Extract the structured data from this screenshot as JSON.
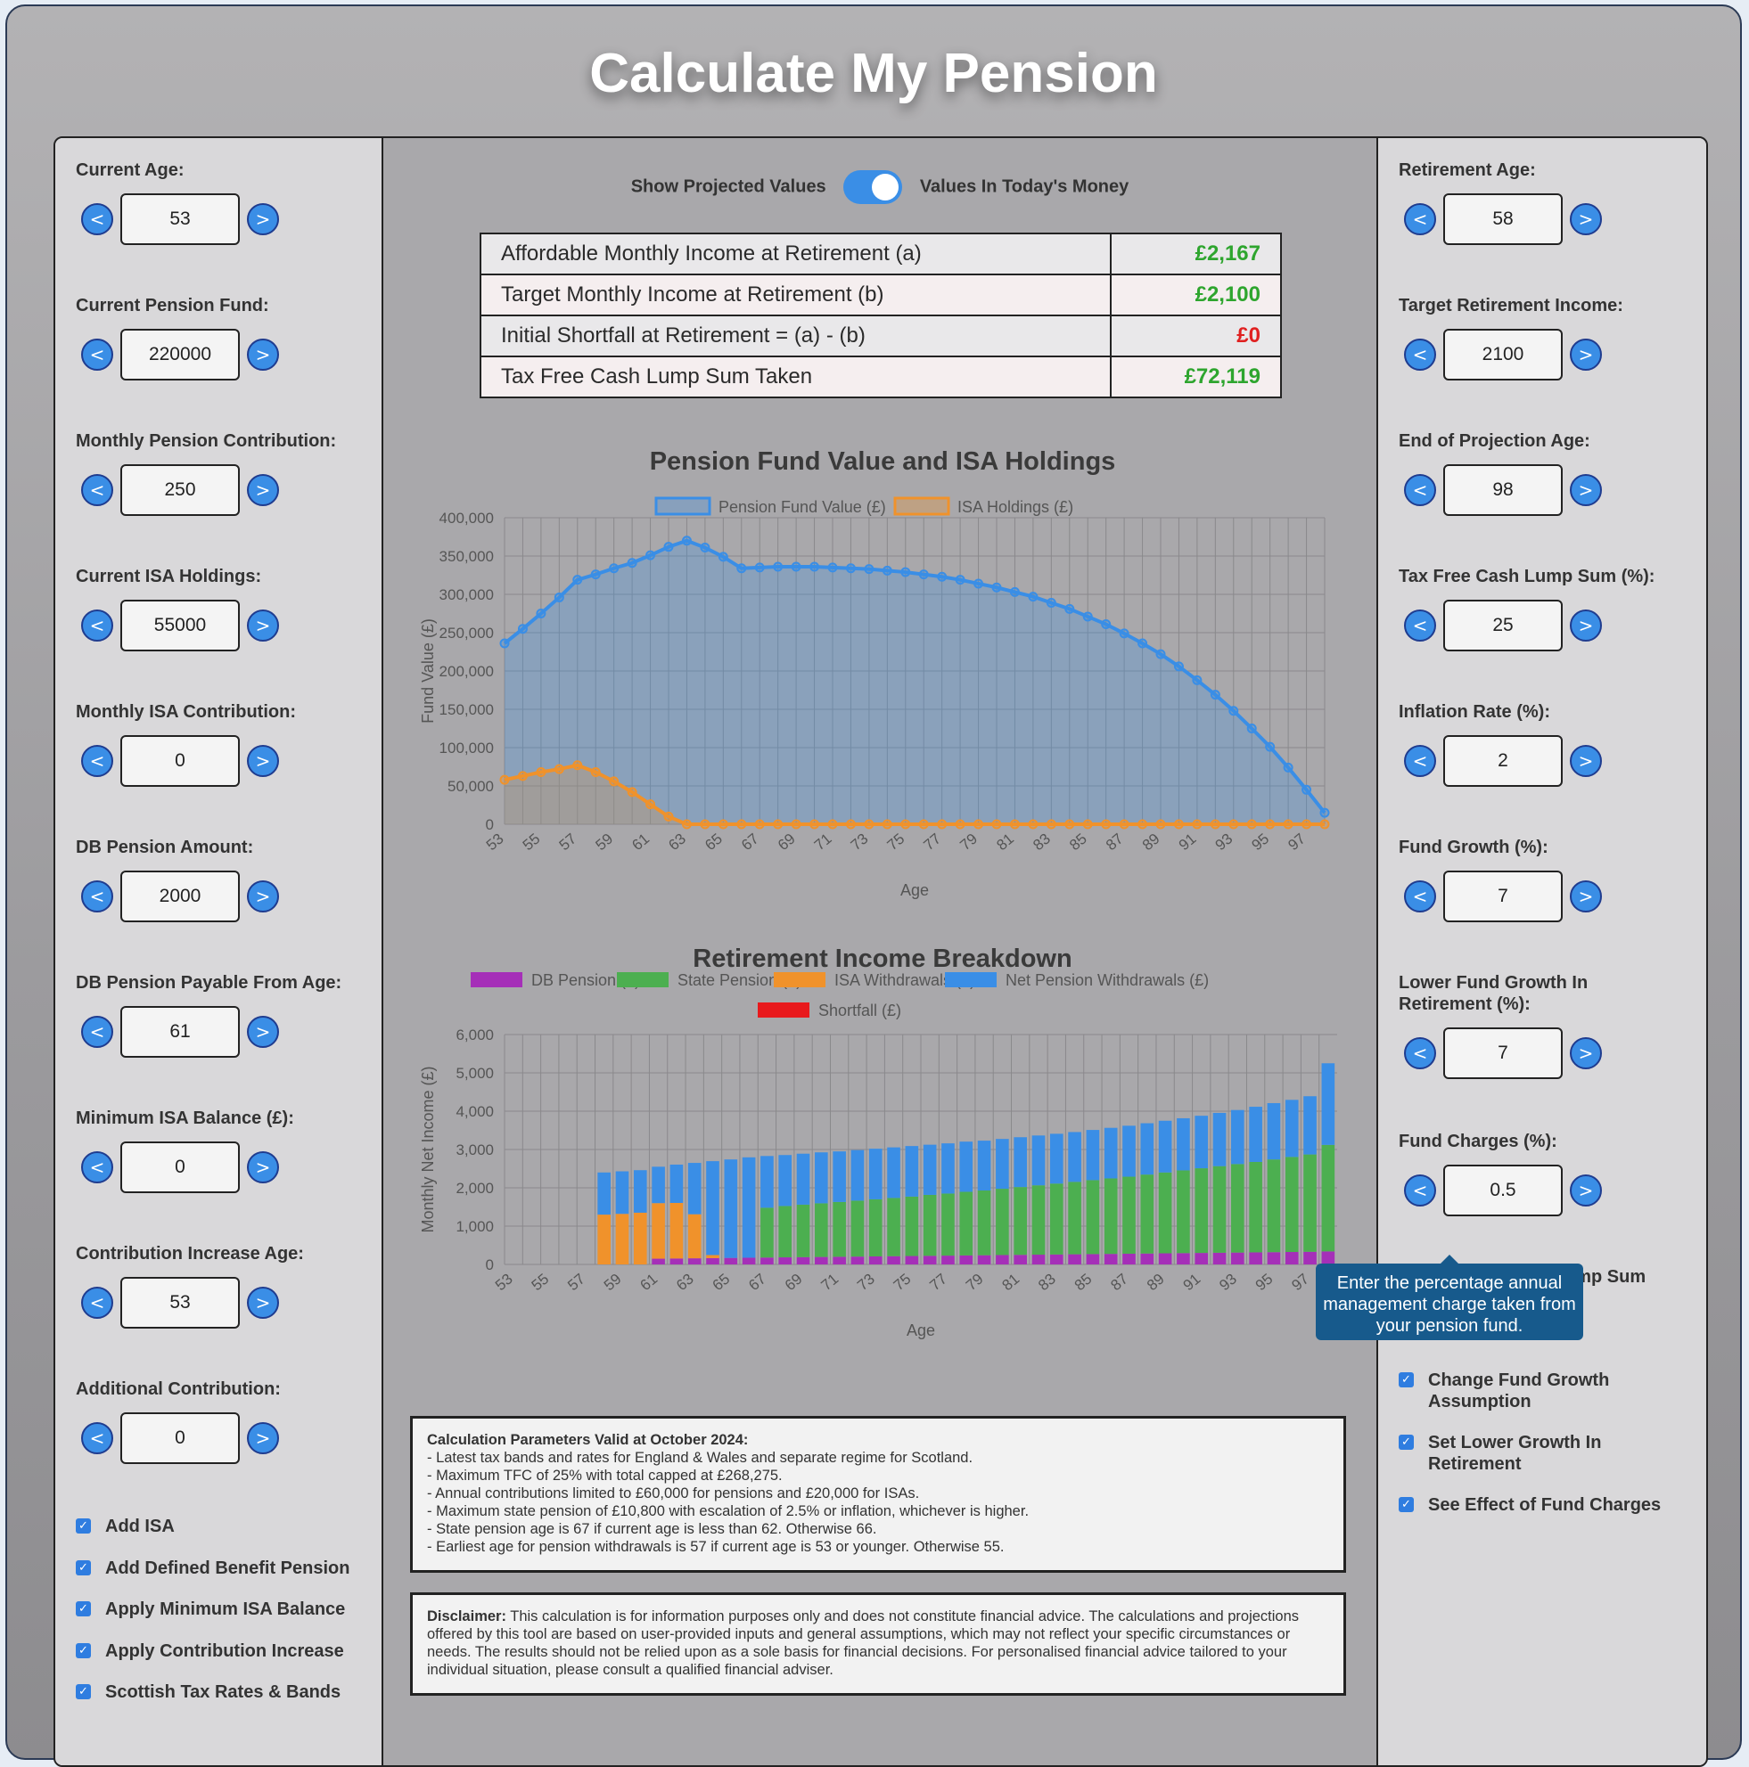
{
  "page": {
    "title": "Calculate My Pension"
  },
  "left_fields": [
    {
      "label": "Current Age:",
      "value": "53"
    },
    {
      "label": "Current Pension Fund:",
      "value": "220000"
    },
    {
      "label": "Monthly Pension Contribution:",
      "value": "250"
    },
    {
      "label": "Current ISA Holdings:",
      "value": "55000"
    },
    {
      "label": "Monthly ISA Contribution:",
      "value": "0"
    },
    {
      "label": "DB Pension Amount:",
      "value": "2000"
    },
    {
      "label": "DB Pension Payable From Age:",
      "value": "61"
    },
    {
      "label": "Minimum ISA Balance (£):",
      "value": "0"
    },
    {
      "label": "Contribution Increase Age:",
      "value": "53"
    },
    {
      "label": "Additional Contribution:",
      "value": "0"
    }
  ],
  "left_checks": [
    {
      "label": "Add ISA",
      "checked": true
    },
    {
      "label": "Add Defined Benefit Pension",
      "checked": true
    },
    {
      "label": "Apply Minimum ISA Balance",
      "checked": true
    },
    {
      "label": "Apply Contribution Increase",
      "checked": true
    },
    {
      "label": "Scottish Tax Rates & Bands",
      "checked": true
    }
  ],
  "right_fields": [
    {
      "label": "Retirement Age:",
      "value": "58"
    },
    {
      "label": "Target Retirement Income:",
      "value": "2100"
    },
    {
      "label": "End of Projection Age:",
      "value": "98"
    },
    {
      "label": "Tax Free Cash Lump Sum (%):",
      "value": "25"
    },
    {
      "label": "Inflation Rate (%):",
      "value": "2"
    },
    {
      "label": "Fund Growth (%):",
      "value": "7"
    },
    {
      "label": "Lower Fund Growth In Retirement (%):",
      "value": "7"
    },
    {
      "label": "Fund Charges (%):",
      "value": "0.5"
    }
  ],
  "right_checks": [
    {
      "label": "Tax Free Cash Lump Sum",
      "checked": true
    },
    {
      "label": "Change Fund Growth Assumption",
      "checked": true
    },
    {
      "label": "Set Lower Growth In Retirement",
      "checked": true
    },
    {
      "label": "See Effect of Fund Charges",
      "checked": true
    }
  ],
  "stepper": {
    "dec": "<",
    "inc": ">"
  },
  "toggle": {
    "left_label": "Show Projected Values",
    "right_label": "Values In Today's Money",
    "on": true
  },
  "results": [
    {
      "label": "Affordable Monthly Income at Retirement (a)",
      "value": "£2,167",
      "color": "#2ea52e"
    },
    {
      "label": "Target Monthly Income at Retirement (b)",
      "value": "£2,100",
      "color": "#2ea52e"
    },
    {
      "label": "Initial Shortfall at Retirement = (a) - (b)",
      "value": "£0",
      "color": "#e02020"
    },
    {
      "label": "Tax Free Cash Lump Sum Taken",
      "value": "£72,119",
      "color": "#2ea52e"
    }
  ],
  "tooltip": {
    "text": "Enter the percentage annual management charge taken from your pension fund."
  },
  "notes": {
    "params_heading": "Calculation Parameters Valid at October 2024:",
    "params": [
      "- Latest tax bands and rates for England & Wales and separate regime for Scotland.",
      "- Maximum TFC of 25% with total capped at £268,275.",
      "- Annual contributions limited to £60,000 for pensions and £20,000 for ISAs.",
      "- Maximum state pension of £10,800 with escalation of 2.5% or inflation, whichever is higher.",
      "- State pension age is 67 if current age is less than 62. Otherwise 66.",
      "- Earliest age for pension withdrawals is 57 if current age is 53 or younger. Otherwise 55."
    ],
    "disclaimer_heading": "Disclaimer:",
    "disclaimer": " This calculation is for information purposes only and does not constitute financial advice. The calculations and projections offered by this tool are based on user-provided inputs and general assumptions, which may not reflect your specific circumstances or needs. The results should not be relied upon as a sole basis for financial decisions. For personalised financial advice tailored to your individual situation, please consult a qualified financial adviser."
  },
  "colors": {
    "pension_line": "#3a8ee6",
    "isa_line": "#f0922b",
    "db": "#a52fb8",
    "state": "#4caf50",
    "isa": "#f0922b",
    "net": "#3a8ee6",
    "shortfall": "#e8191c"
  },
  "chart_data": [
    {
      "type": "area",
      "title": "Pension Fund Value and ISA Holdings",
      "xlabel": "Age",
      "ylabel": "Fund Value (£)",
      "ylim": [
        0,
        400000
      ],
      "yticks": [
        0,
        50000,
        100000,
        150000,
        200000,
        250000,
        300000,
        350000,
        400000
      ],
      "ytick_labels": [
        "0",
        "50,000",
        "100,000",
        "150,000",
        "200,000",
        "250,000",
        "300,000",
        "350,000",
        "400,000"
      ],
      "x": [
        53,
        54,
        55,
        56,
        57,
        58,
        59,
        60,
        61,
        62,
        63,
        64,
        65,
        66,
        67,
        68,
        69,
        70,
        71,
        72,
        73,
        74,
        75,
        76,
        77,
        78,
        79,
        80,
        81,
        82,
        83,
        84,
        85,
        86,
        87,
        88,
        89,
        90,
        91,
        92,
        93,
        94,
        95,
        96,
        97,
        98
      ],
      "xtick_labels": [
        "53",
        "55",
        "57",
        "59",
        "61",
        "63",
        "65",
        "67",
        "69",
        "71",
        "73",
        "75",
        "77",
        "79",
        "81",
        "83",
        "85",
        "87",
        "89",
        "91",
        "93",
        "95",
        "97"
      ],
      "legend": "top",
      "grid": true,
      "series": [
        {
          "name": "Pension Fund Value (£)",
          "values": [
            236000,
            255000,
            275000,
            296000,
            319000,
            326000,
            334000,
            341000,
            351000,
            362000,
            370000,
            361000,
            349000,
            334000,
            335000,
            336000,
            336000,
            336000,
            335000,
            334000,
            333000,
            331000,
            329000,
            326000,
            323000,
            319000,
            314000,
            309000,
            303000,
            297000,
            289000,
            281000,
            271000,
            261000,
            249000,
            236000,
            222000,
            206000,
            188000,
            169000,
            148000,
            125000,
            101000,
            74000,
            45000,
            15000
          ]
        },
        {
          "name": "ISA Holdings (£)",
          "values": [
            58000,
            63000,
            68000,
            72000,
            77000,
            68000,
            56000,
            42000,
            26000,
            10000,
            0,
            0,
            0,
            0,
            0,
            0,
            0,
            0,
            0,
            0,
            0,
            0,
            0,
            0,
            0,
            0,
            0,
            0,
            0,
            0,
            0,
            0,
            0,
            0,
            0,
            0,
            0,
            0,
            0,
            0,
            0,
            0,
            0,
            0,
            0,
            0
          ]
        }
      ]
    },
    {
      "type": "bar",
      "stacked": true,
      "title": "Retirement Income Breakdown",
      "xlabel": "Age",
      "ylabel": "Monthly Net Income (£)",
      "ylim": [
        0,
        6000
      ],
      "yticks": [
        0,
        1000,
        2000,
        3000,
        4000,
        5000,
        6000
      ],
      "ytick_labels": [
        "0",
        "1,000",
        "2,000",
        "3,000",
        "4,000",
        "5,000",
        "6,000"
      ],
      "categories": [
        53,
        54,
        55,
        56,
        57,
        58,
        59,
        60,
        61,
        62,
        63,
        64,
        65,
        66,
        67,
        68,
        69,
        70,
        71,
        72,
        73,
        74,
        75,
        76,
        77,
        78,
        79,
        80,
        81,
        82,
        83,
        84,
        85,
        86,
        87,
        88,
        89,
        90,
        91,
        92,
        93,
        94,
        95,
        96,
        97,
        98
      ],
      "xtick_labels": [
        "53",
        "55",
        "57",
        "59",
        "61",
        "63",
        "65",
        "67",
        "69",
        "71",
        "73",
        "75",
        "77",
        "79",
        "81",
        "83",
        "85",
        "87",
        "89",
        "91",
        "93",
        "95",
        "97"
      ],
      "legend": "top",
      "grid": true,
      "series": [
        {
          "name": "DB Pension (£)",
          "values": [
            0,
            0,
            0,
            0,
            0,
            0,
            0,
            0,
            150,
            155,
            160,
            165,
            170,
            175,
            180,
            185,
            190,
            195,
            200,
            205,
            210,
            215,
            220,
            225,
            230,
            235,
            240,
            245,
            250,
            255,
            260,
            265,
            270,
            275,
            280,
            285,
            290,
            295,
            300,
            305,
            310,
            315,
            320,
            325,
            330,
            340
          ]
        },
        {
          "name": "State Pension (£)",
          "values": [
            0,
            0,
            0,
            0,
            0,
            0,
            0,
            0,
            0,
            0,
            0,
            0,
            0,
            0,
            1300,
            1340,
            1370,
            1400,
            1430,
            1460,
            1490,
            1520,
            1550,
            1590,
            1620,
            1660,
            1690,
            1730,
            1770,
            1810,
            1850,
            1890,
            1930,
            1970,
            2010,
            2060,
            2110,
            2160,
            2210,
            2260,
            2310,
            2360,
            2420,
            2480,
            2540,
            2780
          ]
        },
        {
          "name": "ISA Withdrawals (£)",
          "values": [
            0,
            0,
            0,
            0,
            0,
            1300,
            1320,
            1350,
            1450,
            1450,
            1150,
            80,
            0,
            0,
            0,
            0,
            0,
            0,
            0,
            0,
            0,
            0,
            0,
            0,
            0,
            0,
            0,
            0,
            0,
            0,
            0,
            0,
            0,
            0,
            0,
            0,
            0,
            0,
            0,
            0,
            0,
            0,
            0,
            0,
            0,
            0
          ]
        },
        {
          "name": "Net Pension Withdrawals (£)",
          "values": [
            0,
            0,
            0,
            0,
            0,
            1100,
            1110,
            1110,
            950,
            1000,
            1340,
            2450,
            2570,
            2620,
            1350,
            1330,
            1330,
            1330,
            1320,
            1320,
            1320,
            1320,
            1320,
            1310,
            1310,
            1310,
            1300,
            1300,
            1300,
            1300,
            1300,
            1300,
            1310,
            1320,
            1330,
            1340,
            1350,
            1360,
            1370,
            1390,
            1410,
            1440,
            1470,
            1490,
            1520,
            2130
          ]
        },
        {
          "name": "Shortfall (£)",
          "values": [
            0,
            0,
            0,
            0,
            0,
            0,
            0,
            0,
            0,
            0,
            0,
            0,
            0,
            0,
            0,
            0,
            0,
            0,
            0,
            0,
            0,
            0,
            0,
            0,
            0,
            0,
            0,
            0,
            0,
            0,
            0,
            0,
            0,
            0,
            0,
            0,
            0,
            0,
            0,
            0,
            0,
            0,
            0,
            0,
            0,
            0
          ]
        }
      ]
    }
  ]
}
